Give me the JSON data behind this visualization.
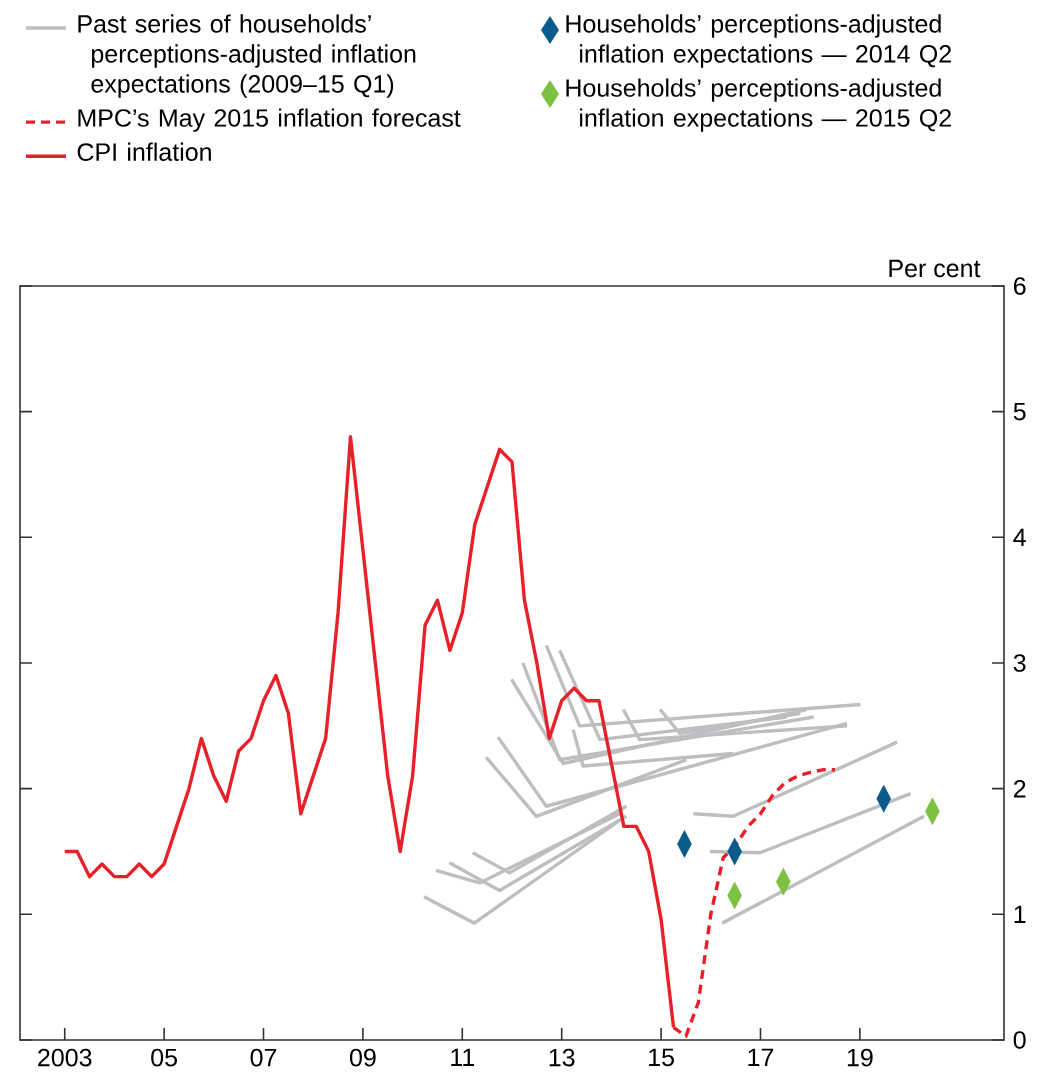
{
  "chart_data": {
    "type": "line",
    "xlim": [
      2002.1,
      2021.9
    ],
    "ylim": [
      0,
      6
    ],
    "xticks": [
      2003,
      {
        "value": 2005,
        "label": "05"
      },
      {
        "value": 2007,
        "label": "07"
      },
      {
        "value": 2009,
        "label": "09"
      },
      {
        "value": 2011,
        "label": "11"
      },
      {
        "value": 2013,
        "label": "13"
      },
      {
        "value": 2015,
        "label": "15"
      },
      {
        "value": 2017,
        "label": "17"
      },
      {
        "value": 2019,
        "label": "19"
      }
    ],
    "yticks": [
      0,
      1,
      2,
      3,
      4,
      5,
      6
    ],
    "ylabel": "Per cent",
    "legend": "top",
    "series": [
      {
        "name": "Past series of households’ perceptions-adjusted inflation expectations (2009–15 Q1)",
        "color": "#bcbec0",
        "x": [
          2010.23,
          2011.24,
          2014.17
        ],
        "values": [
          1.14,
          0.93,
          1.75
        ]
      },
      {
        "color": "#bcbec0",
        "x": [
          2010.47,
          2011.35,
          2014.17
        ],
        "values": [
          1.35,
          1.25,
          1.8
        ]
      },
      {
        "color": "#bcbec0",
        "x": [
          2010.74,
          2011.75,
          2014.3
        ],
        "values": [
          1.41,
          1.19,
          1.78
        ]
      },
      {
        "color": "#bcbec0",
        "x": [
          2011.21,
          2011.95,
          2014.3
        ],
        "values": [
          1.49,
          1.33,
          1.86
        ]
      },
      {
        "color": "#bcbec0",
        "x": [
          2011.48,
          2012.49,
          2015.51
        ],
        "values": [
          2.25,
          1.78,
          2.23
        ]
      },
      {
        "color": "#bcbec0",
        "x": [
          2011.72,
          2012.69,
          2018.74
        ],
        "values": [
          2.41,
          1.86,
          2.52
        ]
      },
      {
        "color": "#bcbec0",
        "x": [
          2011.99,
          2013.03,
          2017.93
        ],
        "values": [
          2.87,
          2.2,
          2.63
        ]
      },
      {
        "color": "#bcbec0",
        "x": [
          2012.22,
          2012.96,
          2018.07
        ],
        "values": [
          3.0,
          2.23,
          2.57
        ]
      },
      {
        "color": "#bcbec0",
        "x": [
          2012.69,
          2013.36,
          2019.01
        ],
        "values": [
          3.14,
          2.5,
          2.67
        ]
      },
      {
        "color": "#bcbec0",
        "x": [
          2012.96,
          2013.77,
          2017.53
        ],
        "values": [
          3.1,
          2.39,
          2.57
        ]
      },
      {
        "color": "#bcbec0",
        "x": [
          2013.23,
          2013.43,
          2016.45
        ],
        "values": [
          2.47,
          2.18,
          2.28
        ]
      },
      {
        "color": "#bcbec0",
        "x": [
          2014.24,
          2014.57,
          2018.74
        ],
        "values": [
          2.63,
          2.39,
          2.5
        ]
      },
      {
        "color": "#bcbec0",
        "x": [
          2014.98,
          2015.38,
          2017.8
        ],
        "values": [
          2.63,
          2.44,
          2.6
        ]
      },
      {
        "color": "#bcbec0",
        "x": [
          2015.65,
          2016.45,
          2019.75
        ],
        "values": [
          1.8,
          1.78,
          2.37
        ]
      },
      {
        "color": "#bcbec0",
        "x": [
          2015.98,
          2016.99,
          2020.02
        ],
        "values": [
          1.5,
          1.49,
          1.96
        ]
      },
      {
        "color": "#bcbec0",
        "x": [
          2016.23,
          2020.29
        ],
        "values": [
          0.93,
          1.78
        ]
      },
      {
        "name": "MPC’s May 2015 inflation forecast",
        "line_style": "dashed",
        "color": "#e8202a",
        "x": [
          2015.25,
          2015.5,
          2015.75,
          2016.0,
          2016.25,
          2016.5,
          2016.75,
          2017.0,
          2017.25,
          2017.5,
          2017.75,
          2018.0,
          2018.25,
          2018.5
        ],
        "values": [
          0.1,
          0.03,
          0.3,
          1.0,
          1.45,
          1.55,
          1.7,
          1.8,
          1.95,
          2.05,
          2.1,
          2.13,
          2.15,
          2.15
        ]
      },
      {
        "name": "CPI inflation",
        "line_style": "solid",
        "color": "#e8202a",
        "x": [
          2003.0,
          2003.25,
          2003.5,
          2003.75,
          2004.0,
          2004.25,
          2004.5,
          2004.75,
          2005.0,
          2005.25,
          2005.5,
          2005.75,
          2006.0,
          2006.25,
          2006.5,
          2006.75,
          2007.0,
          2007.25,
          2007.5,
          2007.75,
          2008.0,
          2008.25,
          2008.5,
          2008.75,
          2009.0,
          2009.25,
          2009.5,
          2009.75,
          2010.0,
          2010.25,
          2010.5,
          2010.75,
          2011.0,
          2011.25,
          2011.5,
          2011.75,
          2012.0,
          2012.25,
          2012.5,
          2012.75,
          2013.0,
          2013.25,
          2013.5,
          2013.75,
          2014.0,
          2014.25,
          2014.5,
          2014.75,
          2015.0,
          2015.25
        ],
        "values": [
          1.5,
          1.5,
          1.3,
          1.4,
          1.3,
          1.3,
          1.4,
          1.3,
          1.4,
          1.7,
          2.0,
          2.4,
          2.1,
          1.9,
          2.3,
          2.4,
          2.7,
          2.9,
          2.6,
          1.8,
          2.1,
          2.4,
          3.4,
          4.8,
          3.9,
          3.0,
          2.1,
          1.5,
          2.1,
          3.3,
          3.5,
          3.1,
          3.4,
          4.1,
          4.4,
          4.7,
          4.6,
          3.5,
          3.0,
          2.4,
          2.7,
          2.8,
          2.7,
          2.7,
          2.2,
          1.7,
          1.7,
          1.5,
          0.96,
          0.1
        ]
      },
      {
        "name": "Households’ perceptions-adjusted inflation expectations — 2014 Q2",
        "type": "scatter",
        "marker": "diamond",
        "color": "#0b5a8c",
        "x": [
          2015.47,
          2016.48,
          2019.48
        ],
        "values": [
          1.56,
          1.5,
          1.92
        ]
      },
      {
        "name": "Households’ perceptions-adjusted inflation expectations — 2015 Q2",
        "type": "scatter",
        "marker": "diamond",
        "color": "#7dc142",
        "x": [
          2016.48,
          2017.46,
          2020.46
        ],
        "values": [
          1.15,
          1.26,
          1.82
        ]
      }
    ]
  }
}
